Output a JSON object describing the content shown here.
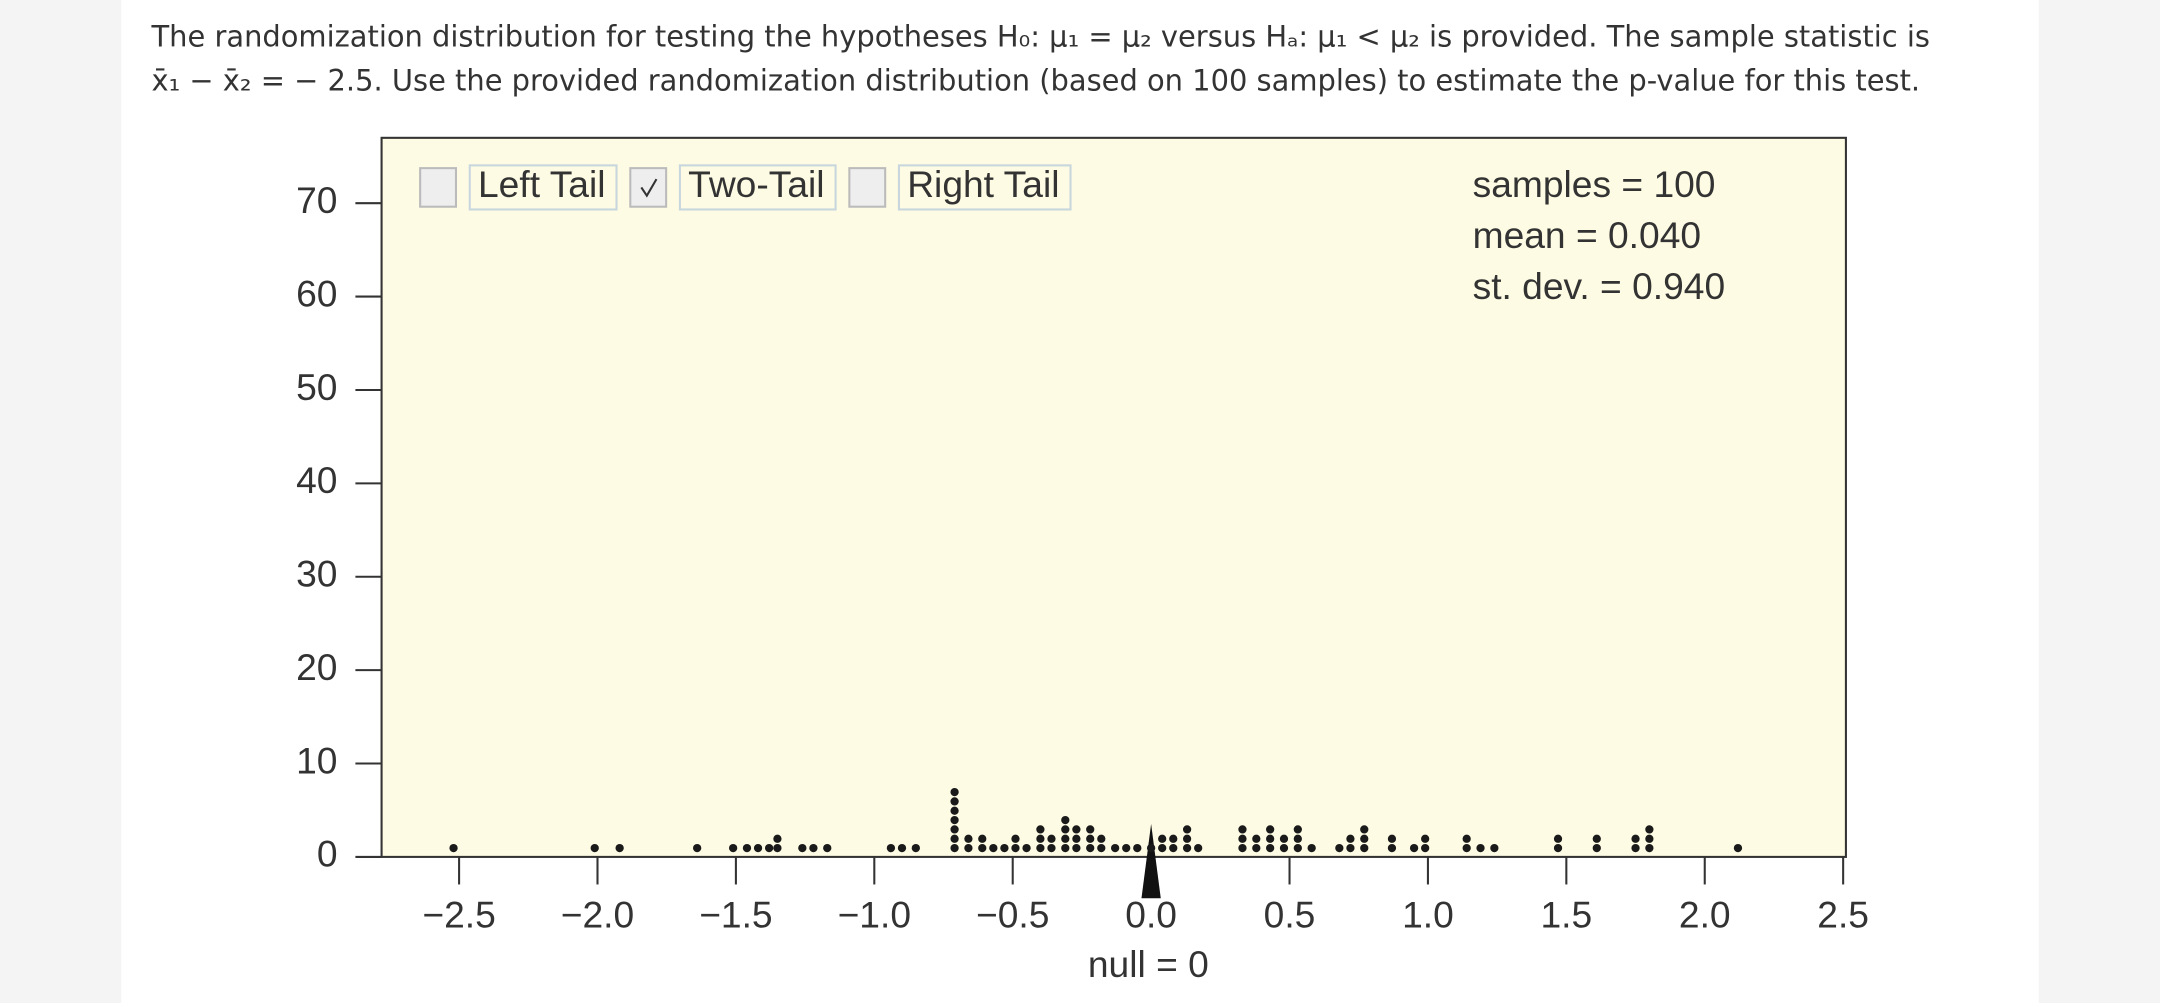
{
  "question": {
    "line1": "The randomization distribution for testing the hypotheses H₀: μ₁ = μ₂ versus Hₐ: μ₁ < μ₂ is provided. The sample statistic is",
    "line2": "x̄₁ − x̄₂ = − 2.5. Use the provided randomization distribution (based on 100 samples) to estimate the p-value for this test."
  },
  "chart_data": {
    "type": "dotplot",
    "x": [
      -2.52,
      -2.01,
      -1.92,
      -1.64,
      -1.51,
      -1.46,
      -1.42,
      -1.38,
      -1.35,
      -1.26,
      -1.22,
      -1.17,
      -0.94,
      -0.9,
      -0.85,
      -0.71,
      -0.66,
      -0.61,
      -0.57,
      -0.53,
      -0.49,
      -0.45,
      -0.4,
      -0.36,
      -0.31,
      -0.27,
      -0.22,
      -0.18,
      -0.13,
      -0.09,
      -0.05,
      0.0,
      0.04,
      0.08,
      0.13,
      0.17,
      0.33,
      0.38,
      0.43,
      0.48,
      0.53,
      0.58,
      0.68,
      0.72,
      0.77,
      0.87,
      0.95,
      0.99,
      1.14,
      1.19,
      1.24,
      1.47,
      1.61,
      1.75,
      1.8,
      2.12
    ],
    "values": [
      1,
      1,
      1,
      1,
      1,
      1,
      1,
      1,
      2,
      1,
      1,
      1,
      1,
      1,
      1,
      7,
      2,
      2,
      1,
      1,
      2,
      1,
      3,
      2,
      4,
      3,
      3,
      2,
      1,
      1,
      1,
      1,
      2,
      2,
      3,
      1,
      3,
      2,
      3,
      2,
      3,
      1,
      1,
      2,
      3,
      2,
      1,
      2,
      2,
      1,
      1,
      2,
      2,
      2,
      3,
      1
    ],
    "color": "#1a1a1a",
    "background": "#fdfbe3",
    "xlim": [
      -2.78,
      2.51
    ],
    "ylim": [
      0,
      77
    ],
    "xticks": [
      {
        "value": -2.5,
        "label": "−2.5"
      },
      {
        "value": -2,
        "label": "−2.0"
      },
      {
        "value": -1.5,
        "label": "−1.5"
      },
      {
        "value": -1,
        "label": "−1.0"
      },
      {
        "value": -0.5,
        "label": "−0.5"
      },
      {
        "value": 0,
        "label": "0.0"
      },
      0.5,
      {
        "value": 1,
        "label": "1.0"
      },
      1.5,
      {
        "value": 2,
        "label": "2.0"
      },
      2.5
    ],
    "yticks": [
      0,
      10,
      20,
      30,
      40,
      50,
      60,
      70
    ],
    "null": 0,
    "xlabel": "null = 0",
    "checkboxes": [
      {
        "label": "Left Tail",
        "checked": false
      },
      {
        "label": "Two-Tail",
        "checked": true
      },
      {
        "label": "Right Tail",
        "checked": false
      }
    ],
    "stats": [
      "samples = 100",
      "mean = 0.040",
      "st. dev. = 0.940"
    ]
  }
}
